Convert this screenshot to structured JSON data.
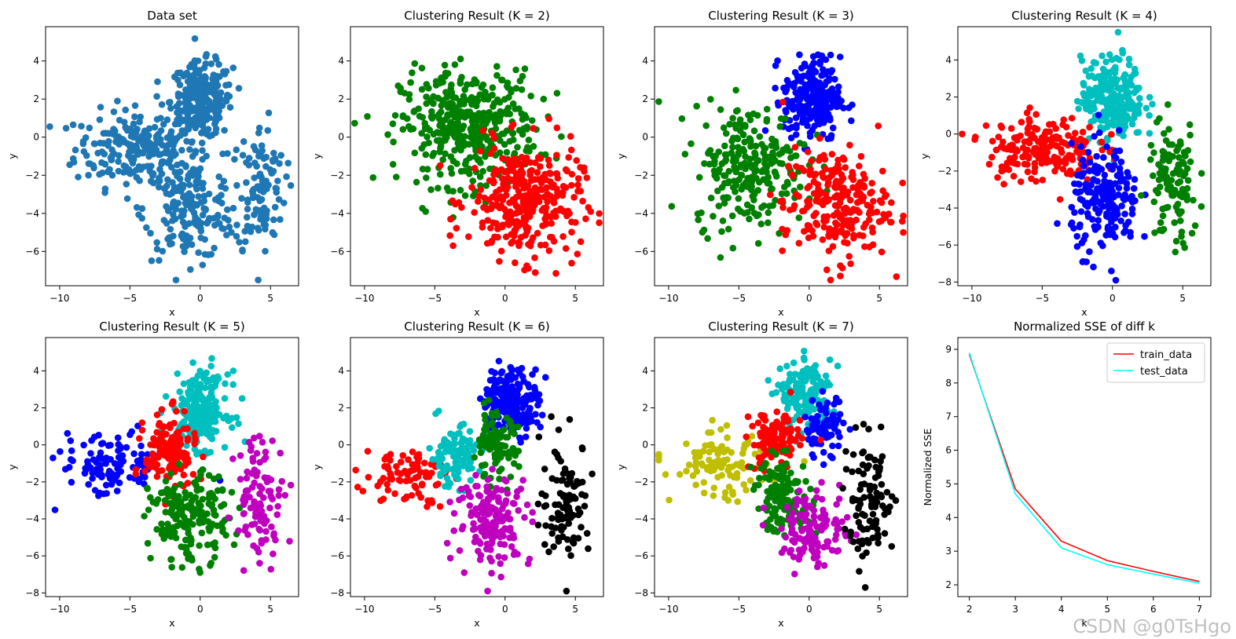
{
  "figure": {
    "watermark": "CSDN @g0TsHgo"
  },
  "colors": {
    "default": "#1f77b4",
    "r": "#ff0000",
    "g": "#008000",
    "b": "#0000ff",
    "c": "#00bfbf",
    "m": "#bf00bf",
    "k": "#000000",
    "y": "#bfbf00",
    "train_line": "#ff0000",
    "test_line": "#00ffff"
  },
  "chart_data": [
    {
      "type": "scatter",
      "title": "Data set",
      "xlabel": "x",
      "ylabel": "y",
      "xlim": [
        -11,
        7
      ],
      "ylim": [
        -7.8,
        5.8
      ],
      "xticks": [
        -10,
        -5,
        0,
        5
      ],
      "yticks": [
        -6,
        -4,
        -2,
        0,
        2,
        4
      ],
      "k": 1,
      "clusters": [
        {
          "color": "#1f77b4",
          "cx": -4.5,
          "cy": -0.6,
          "sx": 2.2,
          "sy": 1.0,
          "n": 230
        },
        {
          "color": "#1f77b4",
          "cx": 0.1,
          "cy": 1.9,
          "sx": 1.1,
          "sy": 1.0,
          "n": 240
        },
        {
          "color": "#1f77b4",
          "cx": -0.8,
          "cy": -3.8,
          "sx": 1.6,
          "sy": 1.3,
          "n": 180
        },
        {
          "color": "#1f77b4",
          "cx": 4.3,
          "cy": -2.7,
          "sx": 0.9,
          "sy": 1.7,
          "n": 110
        }
      ]
    },
    {
      "type": "scatter",
      "title": "Clustering Result (K = 2)",
      "xlabel": "x",
      "ylabel": "y",
      "xlim": [
        -11,
        7
      ],
      "ylim": [
        -7.8,
        5.8
      ],
      "xticks": [
        -10,
        -5,
        0,
        5
      ],
      "yticks": [
        -6,
        -4,
        -2,
        0,
        2,
        4
      ],
      "k": 2,
      "clusters": [
        {
          "color": "#008000",
          "cx": -2.6,
          "cy": 0.5,
          "sx": 2.4,
          "sy": 1.5,
          "n": 420
        },
        {
          "color": "#ff0000",
          "cx": 1.4,
          "cy": -3.4,
          "sx": 2.0,
          "sy": 1.5,
          "n": 320
        }
      ]
    },
    {
      "type": "scatter",
      "title": "Clustering Result (K = 3)",
      "xlabel": "x",
      "ylabel": "y",
      "xlim": [
        -11,
        7
      ],
      "ylim": [
        -7.8,
        5.8
      ],
      "xticks": [
        -10,
        -5,
        0,
        5
      ],
      "yticks": [
        -6,
        -4,
        -2,
        0,
        2,
        4
      ],
      "k": 3,
      "clusters": [
        {
          "color": "#0000ff",
          "cx": 0.2,
          "cy": 2.0,
          "sx": 1.0,
          "sy": 1.1,
          "n": 250
        },
        {
          "color": "#008000",
          "cx": -4.2,
          "cy": -1.5,
          "sx": 2.0,
          "sy": 1.6,
          "n": 250
        },
        {
          "color": "#ff0000",
          "cx": 1.9,
          "cy": -3.5,
          "sx": 1.9,
          "sy": 1.5,
          "n": 240
        }
      ]
    },
    {
      "type": "scatter",
      "title": "Clustering Result (K = 4)",
      "xlabel": "x",
      "ylabel": "y",
      "xlim": [
        -11,
        7
      ],
      "ylim": [
        -8.2,
        5.8
      ],
      "xticks": [
        -10,
        -5,
        0,
        5
      ],
      "yticks": [
        -8,
        -6,
        -4,
        -2,
        0,
        2,
        4
      ],
      "k": 4,
      "clusters": [
        {
          "color": "#00bfbf",
          "cx": 0.0,
          "cy": 1.9,
          "sx": 1.1,
          "sy": 1.1,
          "n": 240
        },
        {
          "color": "#ff0000",
          "cx": -5.0,
          "cy": -0.8,
          "sx": 2.0,
          "sy": 0.9,
          "n": 190
        },
        {
          "color": "#0000ff",
          "cx": -0.5,
          "cy": -3.6,
          "sx": 1.2,
          "sy": 1.4,
          "n": 200
        },
        {
          "color": "#008000",
          "cx": 4.3,
          "cy": -2.8,
          "sx": 0.9,
          "sy": 1.7,
          "n": 110
        }
      ]
    },
    {
      "type": "scatter",
      "title": "Clustering Result (K = 5)",
      "xlabel": "x",
      "ylabel": "y",
      "xlim": [
        -11,
        7
      ],
      "ylim": [
        -8.2,
        5.8
      ],
      "xticks": [
        -10,
        -5,
        0,
        5
      ],
      "yticks": [
        -8,
        -6,
        -4,
        -2,
        0,
        2,
        4
      ],
      "k": 5,
      "clusters": [
        {
          "color": "#00bfbf",
          "cx": 0.0,
          "cy": 1.9,
          "sx": 1.0,
          "sy": 1.0,
          "n": 220
        },
        {
          "color": "#0000ff",
          "cx": -6.3,
          "cy": -1.1,
          "sx": 1.8,
          "sy": 0.9,
          "n": 110
        },
        {
          "color": "#ff0000",
          "cx": -2.1,
          "cy": -0.4,
          "sx": 0.9,
          "sy": 1.0,
          "n": 140
        },
        {
          "color": "#008000",
          "cx": -0.8,
          "cy": -4.0,
          "sx": 1.4,
          "sy": 1.2,
          "n": 180
        },
        {
          "color": "#bf00bf",
          "cx": 4.3,
          "cy": -2.8,
          "sx": 0.9,
          "sy": 1.7,
          "n": 100
        }
      ]
    },
    {
      "type": "scatter",
      "title": "Clustering Result (K = 6)",
      "xlabel": "x",
      "ylabel": "y",
      "xlim": [
        -11,
        7
      ],
      "ylim": [
        -8.2,
        5.8
      ],
      "xticks": [
        -10,
        -5,
        0,
        5
      ],
      "yticks": [
        -8,
        -6,
        -4,
        -2,
        0,
        2,
        4
      ],
      "k": 6,
      "clusters": [
        {
          "color": "#0000ff",
          "cx": 0.4,
          "cy": 2.4,
          "sx": 1.0,
          "sy": 0.9,
          "n": 200
        },
        {
          "color": "#ff0000",
          "cx": -7.0,
          "cy": -1.6,
          "sx": 1.5,
          "sy": 0.8,
          "n": 80
        },
        {
          "color": "#00bfbf",
          "cx": -3.6,
          "cy": -0.6,
          "sx": 0.9,
          "sy": 0.8,
          "n": 110
        },
        {
          "color": "#008000",
          "cx": -0.7,
          "cy": -0.1,
          "sx": 0.8,
          "sy": 0.9,
          "n": 100
        },
        {
          "color": "#bf00bf",
          "cx": -0.8,
          "cy": -4.0,
          "sx": 1.3,
          "sy": 1.2,
          "n": 160
        },
        {
          "color": "#000000",
          "cx": 4.3,
          "cy": -3.0,
          "sx": 0.9,
          "sy": 1.6,
          "n": 100
        }
      ]
    },
    {
      "type": "scatter",
      "title": "Clustering Result (K = 7)",
      "xlabel": "x",
      "ylabel": "y",
      "xlim": [
        -11,
        7
      ],
      "ylim": [
        -8.2,
        5.8
      ],
      "xticks": [
        -10,
        -5,
        0,
        5
      ],
      "yticks": [
        -8,
        -6,
        -4,
        -2,
        0,
        2,
        4
      ],
      "k": 7,
      "clusters": [
        {
          "color": "#00bfbf",
          "cx": -0.2,
          "cy": 2.7,
          "sx": 0.9,
          "sy": 0.9,
          "n": 150
        },
        {
          "color": "#0000ff",
          "cx": 1.0,
          "cy": 0.9,
          "sx": 0.7,
          "sy": 0.8,
          "n": 80
        },
        {
          "color": "#bfbf00",
          "cx": -6.4,
          "cy": -1.2,
          "sx": 1.7,
          "sy": 0.9,
          "n": 100
        },
        {
          "color": "#ff0000",
          "cx": -2.4,
          "cy": 0.2,
          "sx": 0.9,
          "sy": 0.8,
          "n": 120
        },
        {
          "color": "#008000",
          "cx": -1.9,
          "cy": -2.7,
          "sx": 1.0,
          "sy": 1.0,
          "n": 130
        },
        {
          "color": "#bf00bf",
          "cx": 0.4,
          "cy": -4.6,
          "sx": 1.2,
          "sy": 1.0,
          "n": 120
        },
        {
          "color": "#000000",
          "cx": 4.3,
          "cy": -3.0,
          "sx": 0.9,
          "sy": 1.6,
          "n": 100
        }
      ]
    },
    {
      "type": "line",
      "title": "Normalized SSE of diff k",
      "xlabel": "k",
      "ylabel": "Normalized SSE",
      "xlim": [
        1.75,
        7.25
      ],
      "ylim": [
        1.65,
        9.35
      ],
      "xticks": [
        2,
        3,
        4,
        5,
        6,
        7
      ],
      "yticks": [
        2,
        3,
        4,
        5,
        6,
        7,
        8,
        9
      ],
      "x": [
        2,
        3,
        4,
        5,
        6,
        7
      ],
      "series": [
        {
          "name": "train_data",
          "color": "#ff0000",
          "values": [
            8.85,
            4.85,
            3.3,
            2.72,
            2.4,
            2.1
          ]
        },
        {
          "name": "test_data",
          "color": "#00ffff",
          "values": [
            8.9,
            4.7,
            3.1,
            2.6,
            2.32,
            2.05
          ]
        }
      ],
      "legend": "top-right"
    }
  ]
}
